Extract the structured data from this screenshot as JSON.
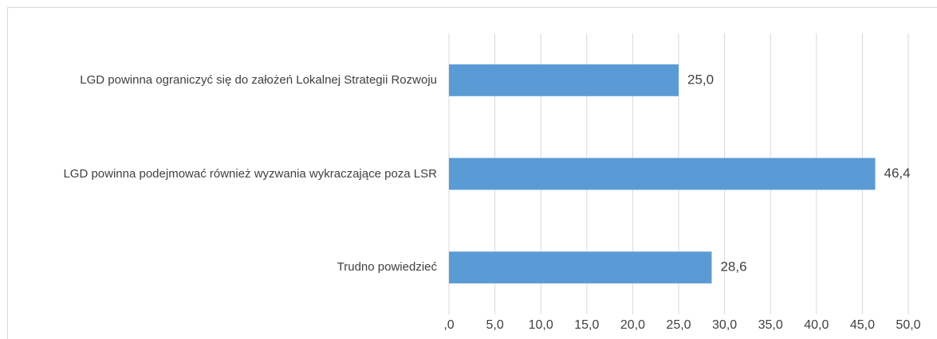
{
  "chart_data": {
    "type": "bar",
    "orientation": "horizontal",
    "categories": [
      "LGD powinna ograniczyć się do założeń Lokalnej Strategii Rozwoju",
      "LGD powinna podejmować również wyzwania wykraczające poza LSR",
      "Trudno powiedzieć"
    ],
    "values": [
      25.0,
      46.4,
      28.6
    ],
    "value_labels": [
      "25,0",
      "46,4",
      "28,6"
    ],
    "color": "#5b9bd5",
    "xlim": [
      0,
      50
    ],
    "xticks": [
      {
        "value": 0,
        "label": ",0"
      },
      {
        "value": 5,
        "label": "5,0"
      },
      {
        "value": 10,
        "label": "10,0"
      },
      {
        "value": 15,
        "label": "15,0"
      },
      {
        "value": 20,
        "label": "20,0"
      },
      {
        "value": 25,
        "label": "25,0"
      },
      {
        "value": 30,
        "label": "30,0"
      },
      {
        "value": 35,
        "label": "35,0"
      },
      {
        "value": 40,
        "label": "40,0"
      },
      {
        "value": 45,
        "label": "45,0"
      },
      {
        "value": 50,
        "label": "50,0"
      }
    ],
    "grid": true
  }
}
